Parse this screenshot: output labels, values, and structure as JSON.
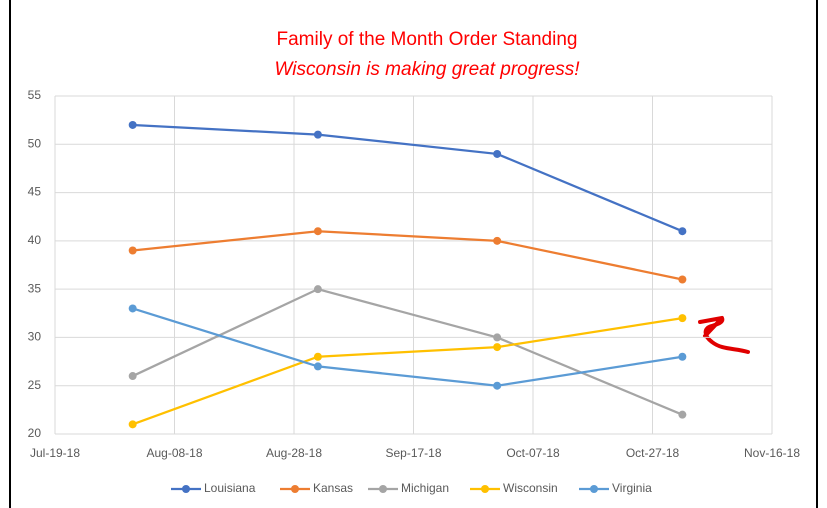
{
  "chart_data": {
    "type": "line",
    "title": "Family of the Month Order Standing",
    "subtitle": "Wisconsin is making great progress!",
    "x": [
      "2018-08-01",
      "2018-09-01",
      "2018-10-01",
      "2018-11-01"
    ],
    "series": [
      {
        "name": "Louisiana",
        "color": "#4472c4",
        "values": [
          52,
          51,
          49,
          41
        ]
      },
      {
        "name": "Kansas",
        "color": "#ed7d31",
        "values": [
          39,
          41,
          40,
          36
        ]
      },
      {
        "name": "Michigan",
        "color": "#a5a5a5",
        "values": [
          26,
          35,
          30,
          22
        ]
      },
      {
        "name": "Wisconsin",
        "color": "#ffc000",
        "values": [
          21,
          28,
          29,
          32
        ]
      },
      {
        "name": "Virginia",
        "color": "#5b9bd5",
        "values": [
          33,
          27,
          25,
          28
        ]
      }
    ],
    "xlim": [
      "2018-07-19",
      "2018-11-16"
    ],
    "xticks": [
      {
        "value": "2018-07-19",
        "label": "Jul-19-18"
      },
      {
        "value": "2018-08-08",
        "label": "Aug-08-18"
      },
      {
        "value": "2018-08-28",
        "label": "Aug-28-18"
      },
      {
        "value": "2018-09-17",
        "label": "Sep-17-18"
      },
      {
        "value": "2018-10-07",
        "label": "Oct-07-18"
      },
      {
        "value": "2018-10-27",
        "label": "Oct-27-18"
      },
      {
        "value": "2018-11-16",
        "label": "Nov-16-18"
      }
    ],
    "ylim": [
      20,
      55
    ],
    "yticks": [
      20,
      25,
      30,
      35,
      40,
      45,
      50,
      55
    ],
    "grid": true,
    "legend": "bottom"
  }
}
